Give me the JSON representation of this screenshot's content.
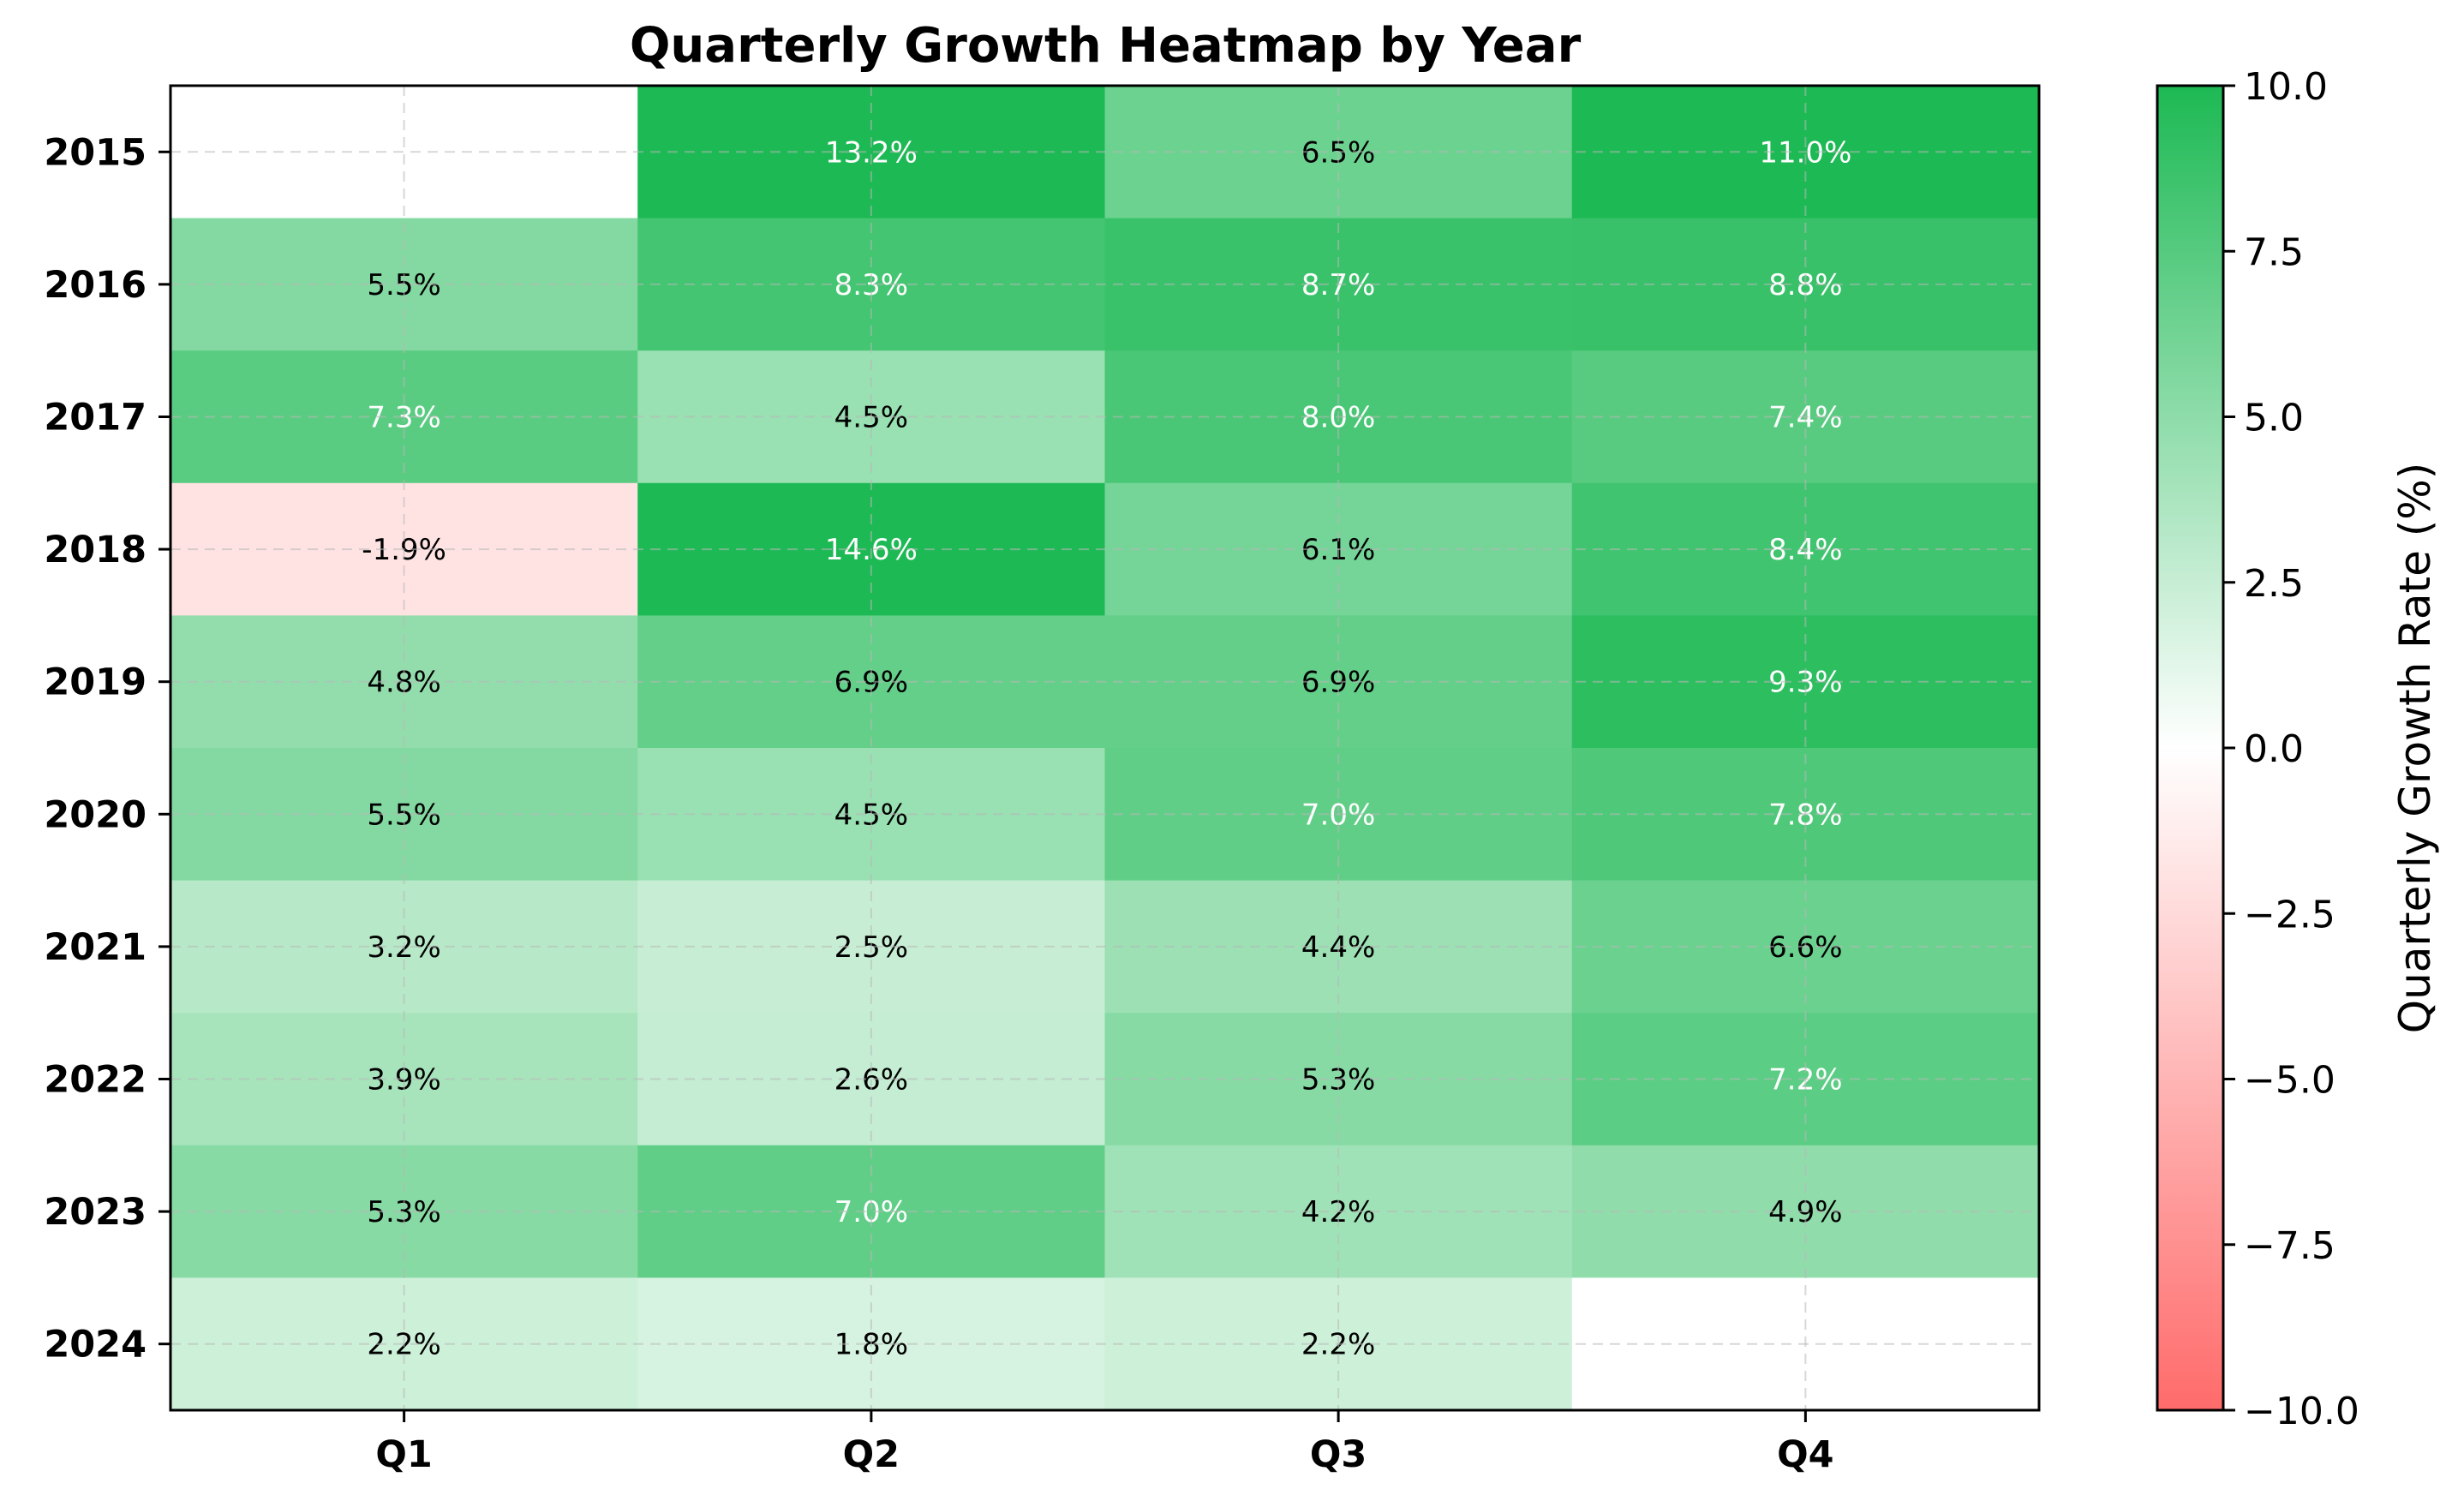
{
  "chart_data": {
    "type": "heatmap",
    "title": "Quarterly Growth Heatmap by Year",
    "columns": [
      "Q1",
      "Q2",
      "Q3",
      "Q4"
    ],
    "rows": [
      "2015",
      "2016",
      "2017",
      "2018",
      "2019",
      "2020",
      "2021",
      "2022",
      "2023",
      "2024"
    ],
    "values": [
      [
        null,
        13.2,
        6.5,
        11.0
      ],
      [
        5.5,
        8.3,
        8.7,
        8.8
      ],
      [
        7.3,
        4.5,
        8.0,
        7.4
      ],
      [
        -1.9,
        14.6,
        6.1,
        8.4
      ],
      [
        4.8,
        6.9,
        6.9,
        9.3
      ],
      [
        5.5,
        4.5,
        7.0,
        7.8
      ],
      [
        3.2,
        2.5,
        4.4,
        6.6
      ],
      [
        3.9,
        2.6,
        5.3,
        7.2
      ],
      [
        5.3,
        7.0,
        4.2,
        4.9
      ],
      [
        2.2,
        1.8,
        2.2,
        null
      ]
    ],
    "value_format": "%",
    "colorbar": {
      "label": "Quarterly Growth Rate (%)",
      "min": -10.0,
      "max": 10.0,
      "ticks": [
        "10.0",
        "7.5",
        "5.0",
        "2.5",
        "0.0",
        "−2.5",
        "−5.0",
        "−7.5",
        "−10.0"
      ],
      "tick_values": [
        10,
        7.5,
        5,
        2.5,
        0,
        -2.5,
        -5,
        -7.5,
        -10
      ],
      "colors": {
        "low": "#ff6b6b",
        "mid": "#ffffff",
        "high": "#1db954"
      }
    },
    "grid": true,
    "grid_style": "dashed"
  }
}
